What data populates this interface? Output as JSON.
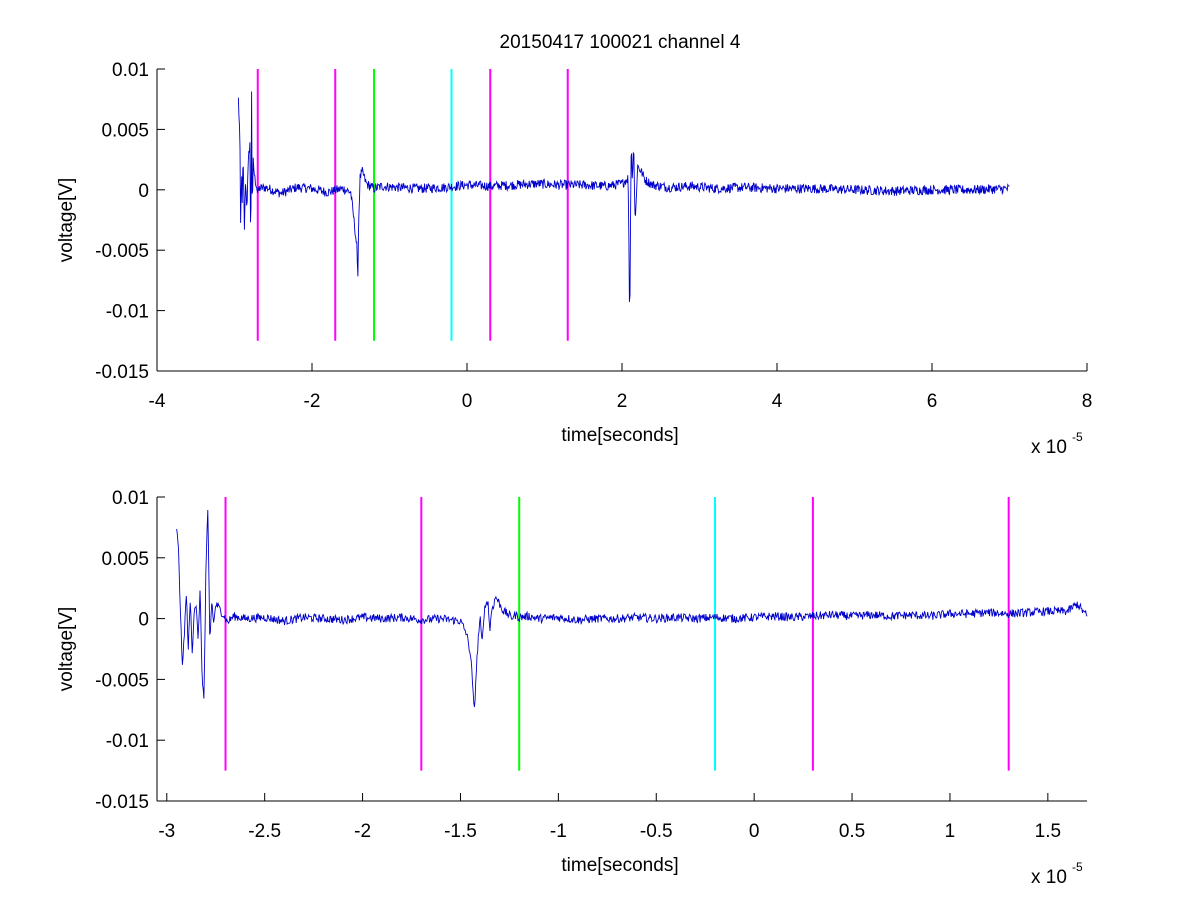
{
  "figure": {
    "title": "20150417 100021 channel 4",
    "background": "#ffffff"
  },
  "chart_data": [
    {
      "type": "line",
      "title": "20150417 100021 channel 4",
      "xlabel": "time[seconds]",
      "ylabel": "voltage[V]",
      "x_multiplier_label": "x 10",
      "x_multiplier_exponent": "-5",
      "xlim": [
        -4,
        8
      ],
      "ylim": [
        -0.015,
        0.01
      ],
      "xticks": [
        -4,
        -2,
        0,
        2,
        4,
        6,
        8
      ],
      "xtick_labels": [
        "-4",
        "-2",
        "0",
        "2",
        "4",
        "6",
        "8"
      ],
      "yticks": [
        0.01,
        0.005,
        0,
        -0.005,
        -0.01,
        -0.015
      ],
      "ytick_labels": [
        "0.01",
        "0.005",
        "0",
        "-0.005",
        "-0.01",
        "-0.015"
      ],
      "grid": false,
      "series": [
        {
          "color": "#0000cc",
          "x": [
            -2.95,
            -2.93,
            -2.92,
            -2.91,
            -2.9,
            -2.89,
            -2.87,
            -2.86,
            -2.84,
            -2.82,
            -2.8,
            -2.79,
            -2.78,
            -2.77,
            -2.76,
            -2.74,
            -2.72,
            -2.7,
            -2.68,
            -2.6,
            -2.4,
            -2.2,
            -2.0,
            -1.8,
            -1.6,
            -1.5,
            -1.45,
            -1.42,
            -1.41,
            -1.4,
            -1.38,
            -1.35,
            -1.3,
            -1.25,
            -1.2,
            -1.1,
            -0.9,
            -0.6,
            -0.3,
            0.0,
            0.3,
            0.6,
            0.9,
            1.2,
            1.5,
            1.8,
            2.0,
            2.08,
            2.1,
            2.12,
            2.13,
            2.15,
            2.17,
            2.2,
            2.25,
            2.3,
            2.4,
            2.6,
            2.9,
            3.2,
            3.6,
            4.0,
            4.5,
            5.0,
            5.5,
            6.0,
            6.5,
            7.0
          ],
          "y": [
            0.0075,
            0.0042,
            -0.0042,
            0.0024,
            -0.0015,
            0.003,
            -0.0038,
            0.001,
            -0.0015,
            0.0025,
            0.004,
            -0.0068,
            0.009,
            -0.003,
            0.0025,
            0.001,
            0.0005,
            -0.0003,
            0.0001,
            0.0002,
            -0.0003,
            0.0002,
            0.0001,
            -0.0002,
            0.0001,
            -0.0002,
            -0.003,
            -0.0048,
            -0.0079,
            -0.003,
            0.001,
            0.0015,
            0.0005,
            0.0003,
            0.0001,
            0.0003,
            0.0002,
            0.0001,
            0.0002,
            0.0004,
            0.0003,
            0.0004,
            0.0005,
            0.0004,
            0.0004,
            0.0003,
            0.0005,
            0.001,
            -0.0114,
            0.0052,
            0.0005,
            0.004,
            -0.003,
            0.002,
            0.0015,
            0.0008,
            0.0004,
            0.0002,
            0.0003,
            0.0001,
            0.0002,
            0.0001,
            0.0001,
            0.0,
            -0.0001,
            0.0,
            0.0,
            0.0001
          ],
          "noise_amplitude": 0.0004
        }
      ],
      "vlines": [
        {
          "x": -2.7,
          "color": "#ff00ff"
        },
        {
          "x": -1.7,
          "color": "#ff00ff"
        },
        {
          "x": -1.2,
          "color": "#00ff00"
        },
        {
          "x": -0.2,
          "color": "#00ffff"
        },
        {
          "x": 0.3,
          "color": "#ff00ff"
        },
        {
          "x": 1.3,
          "color": "#ff00ff"
        }
      ],
      "vline_ylim": [
        -0.0125,
        0.01
      ]
    },
    {
      "type": "line",
      "xlabel": "time[seconds]",
      "ylabel": "voltage[V]",
      "x_multiplier_label": "x 10",
      "x_multiplier_exponent": "-5",
      "xlim": [
        -3.05,
        1.7
      ],
      "ylim": [
        -0.015,
        0.01
      ],
      "xticks": [
        -3,
        -2.5,
        -2,
        -1.5,
        -1,
        -0.5,
        0,
        0.5,
        1,
        1.5
      ],
      "xtick_labels": [
        "-3",
        "-2.5",
        "-2",
        "-1.5",
        "-1",
        "-0.5",
        "0",
        "0.5",
        "1",
        "1.5"
      ],
      "yticks": [
        0.01,
        0.005,
        0,
        -0.005,
        -0.01,
        -0.015
      ],
      "ytick_labels": [
        "0.01",
        "0.005",
        "0",
        "-0.005",
        "-0.01",
        "-0.015"
      ],
      "grid": false,
      "series": [
        {
          "color": "#0000cc",
          "x": [
            -2.95,
            -2.94,
            -2.93,
            -2.92,
            -2.91,
            -2.9,
            -2.89,
            -2.88,
            -2.87,
            -2.86,
            -2.85,
            -2.84,
            -2.83,
            -2.82,
            -2.81,
            -2.8,
            -2.79,
            -2.78,
            -2.77,
            -2.76,
            -2.75,
            -2.73,
            -2.71,
            -2.69,
            -2.66,
            -2.6,
            -2.5,
            -2.4,
            -2.3,
            -2.2,
            -2.1,
            -2.0,
            -1.9,
            -1.8,
            -1.7,
            -1.6,
            -1.55,
            -1.5,
            -1.47,
            -1.45,
            -1.44,
            -1.43,
            -1.42,
            -1.41,
            -1.4,
            -1.39,
            -1.38,
            -1.37,
            -1.36,
            -1.35,
            -1.34,
            -1.33,
            -1.32,
            -1.3,
            -1.28,
            -1.26,
            -1.24,
            -1.22,
            -1.2,
            -1.15,
            -1.1,
            -1.0,
            -0.9,
            -0.8,
            -0.7,
            -0.6,
            -0.5,
            -0.4,
            -0.3,
            -0.2,
            -0.1,
            0.0,
            0.1,
            0.2,
            0.3,
            0.4,
            0.5,
            0.6,
            0.7,
            0.8,
            0.9,
            1.0,
            1.1,
            1.2,
            1.3,
            1.4,
            1.5,
            1.6,
            1.65,
            1.7
          ],
          "y": [
            0.0075,
            0.0055,
            0.0005,
            -0.0042,
            -0.001,
            0.002,
            -0.0025,
            0.0015,
            -0.0028,
            0.0008,
            0.0012,
            -0.002,
            0.0025,
            -0.0045,
            -0.0068,
            0.004,
            0.009,
            -0.002,
            0.0015,
            -0.0005,
            0.0012,
            0.0008,
            0.0003,
            -0.0003,
            0.0002,
            0.0,
            0.0001,
            -0.0002,
            0.0001,
            0.0,
            -0.0001,
            0.0001,
            0.0,
            0.0001,
            -0.0001,
            0.0,
            -0.0001,
            -0.0002,
            -0.0012,
            -0.0028,
            -0.0048,
            -0.0079,
            -0.0045,
            -0.0018,
            0.0001,
            -0.0022,
            0.0005,
            0.0012,
            0.0015,
            -0.001,
            0.0008,
            0.0012,
            0.0018,
            0.0012,
            0.0006,
            0.0004,
            0.0001,
            0.0003,
            0.0001,
            0.0002,
            0.0,
            0.0001,
            -0.0001,
            0.0,
            0.0,
            0.0001,
            0.0,
            0.0001,
            0.0,
            0.0001,
            0.0,
            0.0001,
            0.0002,
            0.0001,
            0.0002,
            0.0003,
            0.0002,
            0.0003,
            0.0002,
            0.0003,
            0.0002,
            0.0004,
            0.0004,
            0.0005,
            0.0004,
            0.0005,
            0.0006,
            0.0006,
            0.0012,
            0.0002
          ],
          "noise_amplitude": 0.00035
        }
      ],
      "vlines": [
        {
          "x": -2.7,
          "color": "#ff00ff"
        },
        {
          "x": -1.7,
          "color": "#ff00ff"
        },
        {
          "x": -1.2,
          "color": "#00ff00"
        },
        {
          "x": -0.2,
          "color": "#00ffff"
        },
        {
          "x": 0.3,
          "color": "#ff00ff"
        },
        {
          "x": 1.3,
          "color": "#ff00ff"
        }
      ],
      "vline_ylim": [
        -0.0125,
        0.01
      ]
    }
  ]
}
